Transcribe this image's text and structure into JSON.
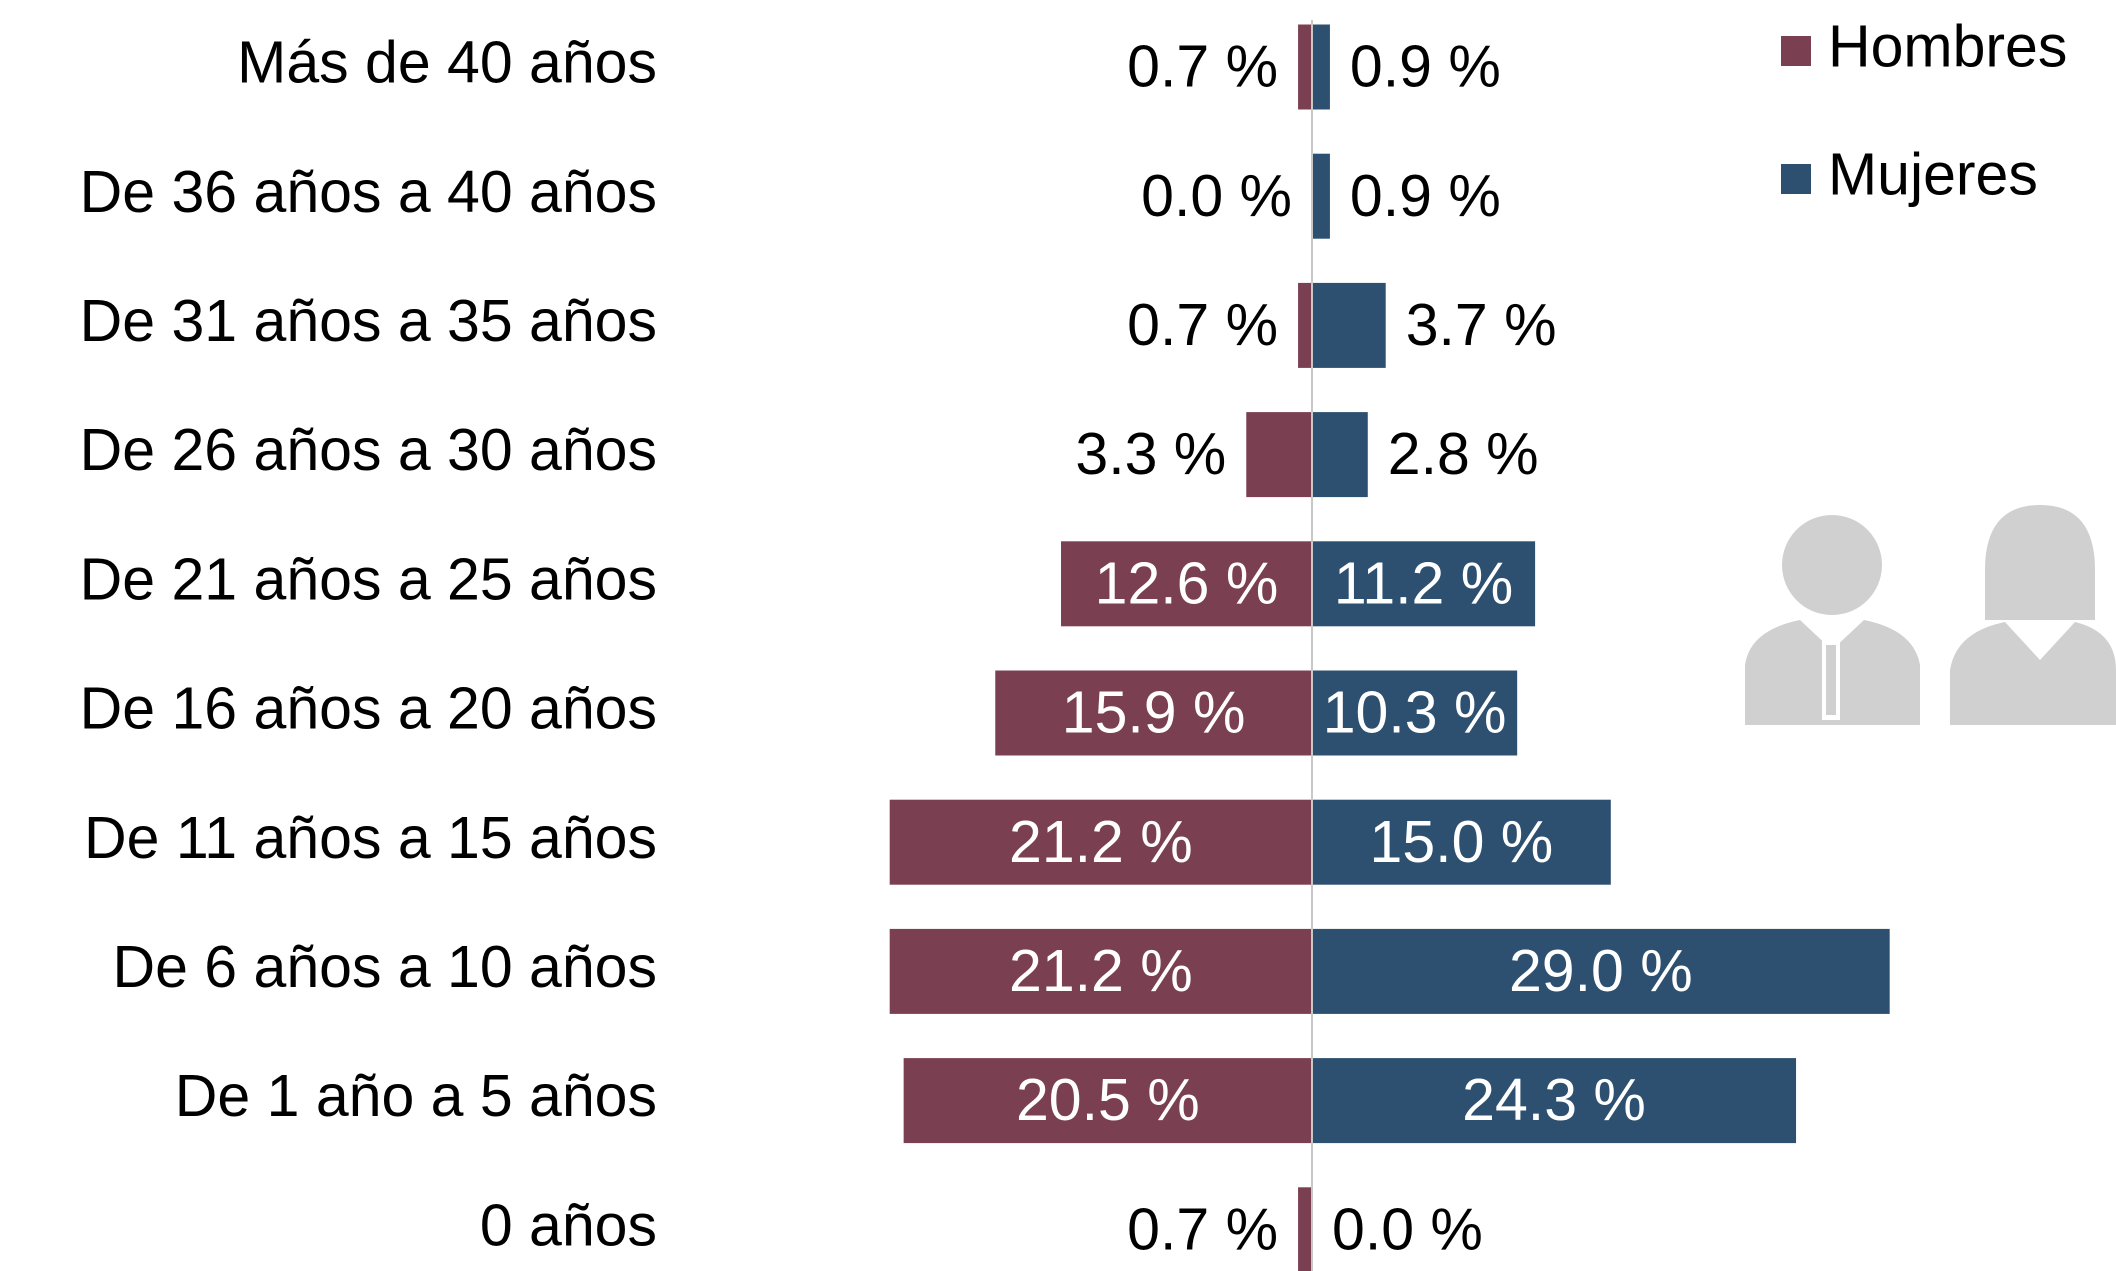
{
  "chart_data": {
    "type": "pyramid",
    "categories": [
      "Más de 40 años",
      "De 36 años a 40 años",
      "De 31 años a 35 años",
      "De 26 años a 30 años",
      "De 21 años a 25 años",
      "De 16 años a 20 años",
      "De 11 años a 15 años",
      "De 6 años a 10 años",
      "De 1 año a 5 años",
      "0 años"
    ],
    "series": [
      {
        "name": "Hombres",
        "color": "#7b3f52",
        "values": [
          0.7,
          0.0,
          0.7,
          3.3,
          12.6,
          15.9,
          21.2,
          21.2,
          20.5,
          0.7
        ],
        "value_labels": [
          "0.7 %",
          "0.0 %",
          "0.7 %",
          "3.3 %",
          "12.6 %",
          "15.9 %",
          "21.2 %",
          "21.2 %",
          "20.5 %",
          "0.7 %"
        ]
      },
      {
        "name": "Mujeres",
        "color": "#2d5070",
        "values": [
          0.9,
          0.9,
          3.7,
          2.8,
          11.2,
          10.3,
          15.0,
          29.0,
          24.3,
          0.0
        ],
        "value_labels": [
          "0.9 %",
          "0.9 %",
          "3.7 %",
          "2.8 %",
          "11.2 %",
          "10.3 %",
          "15.0 %",
          "29.0 %",
          "24.3 %",
          "0.0 %"
        ]
      }
    ],
    "legend": "top-right"
  }
}
